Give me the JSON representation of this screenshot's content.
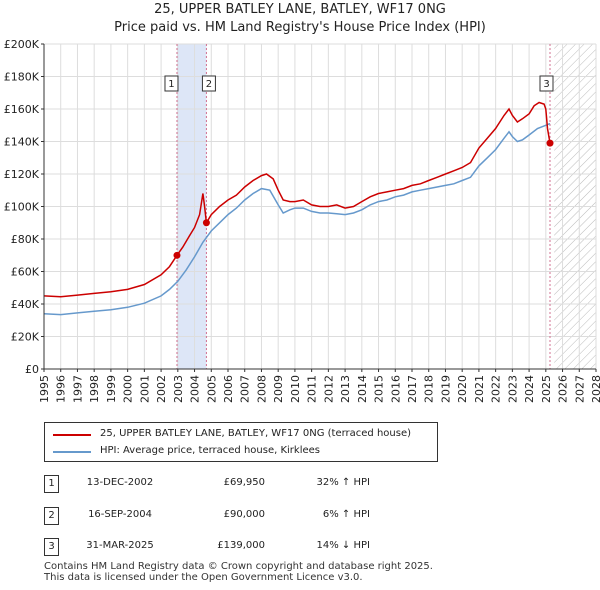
{
  "header": {
    "line1": "25, UPPER BATLEY LANE, BATLEY, WF17 0NG",
    "line2": "Price paid vs. HM Land Registry's House Price Index (HPI)"
  },
  "colors": {
    "price_line": "#cc0000",
    "hpi_line": "#6699cc",
    "shade": "#dde6f7",
    "grid": "#dddddd",
    "future_hatch": "#bbbbbb"
  },
  "chart_data": {
    "type": "line",
    "title": "25, UPPER BATLEY LANE, BATLEY, WF17 0NG — Price paid vs. HM Land Registry's House Price Index (HPI)",
    "xlim": [
      1995,
      2028
    ],
    "ylim": [
      0,
      200000
    ],
    "x_ticks": [
      "1995",
      "1996",
      "1997",
      "1998",
      "1999",
      "2000",
      "2001",
      "2002",
      "2003",
      "2004",
      "2005",
      "2006",
      "2007",
      "2008",
      "2009",
      "2010",
      "2011",
      "2012",
      "2013",
      "2014",
      "2015",
      "2016",
      "2017",
      "2018",
      "2019",
      "2020",
      "2021",
      "2022",
      "2023",
      "2024",
      "2025",
      "2026",
      "2027",
      "2028"
    ],
    "y_ticks": [
      {
        "value": 0,
        "label": "£0"
      },
      {
        "value": 20000,
        "label": "£20K"
      },
      {
        "value": 40000,
        "label": "£40K"
      },
      {
        "value": 60000,
        "label": "£60K"
      },
      {
        "value": 80000,
        "label": "£80K"
      },
      {
        "value": 100000,
        "label": "£100K"
      },
      {
        "value": 120000,
        "label": "£120K"
      },
      {
        "value": 140000,
        "label": "£140K"
      },
      {
        "value": 160000,
        "label": "£160K"
      },
      {
        "value": 180000,
        "label": "£180K"
      },
      {
        "value": 200000,
        "label": "£200K"
      }
    ],
    "shaded_span": [
      2002.95,
      2004.71
    ],
    "future_start": 2025.5,
    "series": [
      {
        "name": "25, UPPER BATLEY LANE, BATLEY, WF17 0NG (terraced house)",
        "color": "#cc0000",
        "points": [
          [
            1995.0,
            45000
          ],
          [
            1996.0,
            44500
          ],
          [
            1997.0,
            45500
          ],
          [
            1998.0,
            46500
          ],
          [
            1999.0,
            47500
          ],
          [
            2000.0,
            49000
          ],
          [
            2001.0,
            52000
          ],
          [
            2002.0,
            58000
          ],
          [
            2002.5,
            63000
          ],
          [
            2002.95,
            69950
          ],
          [
            2003.3,
            75000
          ],
          [
            2003.7,
            82000
          ],
          [
            2004.0,
            87000
          ],
          [
            2004.3,
            95000
          ],
          [
            2004.5,
            108000
          ],
          [
            2004.6,
            100000
          ],
          [
            2004.71,
            90000
          ],
          [
            2005.0,
            95000
          ],
          [
            2005.5,
            100000
          ],
          [
            2006.0,
            104000
          ],
          [
            2006.5,
            107000
          ],
          [
            2007.0,
            112000
          ],
          [
            2007.5,
            116000
          ],
          [
            2008.0,
            119000
          ],
          [
            2008.3,
            120000
          ],
          [
            2008.7,
            117000
          ],
          [
            2009.0,
            110000
          ],
          [
            2009.3,
            104000
          ],
          [
            2009.7,
            103000
          ],
          [
            2010.0,
            103000
          ],
          [
            2010.5,
            104000
          ],
          [
            2011.0,
            101000
          ],
          [
            2011.5,
            100000
          ],
          [
            2012.0,
            100000
          ],
          [
            2012.5,
            101000
          ],
          [
            2013.0,
            99000
          ],
          [
            2013.5,
            100000
          ],
          [
            2014.0,
            103000
          ],
          [
            2014.5,
            106000
          ],
          [
            2015.0,
            108000
          ],
          [
            2015.5,
            109000
          ],
          [
            2016.0,
            110000
          ],
          [
            2016.5,
            111000
          ],
          [
            2017.0,
            113000
          ],
          [
            2017.5,
            114000
          ],
          [
            2018.0,
            116000
          ],
          [
            2018.5,
            118000
          ],
          [
            2019.0,
            120000
          ],
          [
            2019.5,
            122000
          ],
          [
            2020.0,
            124000
          ],
          [
            2020.5,
            127000
          ],
          [
            2021.0,
            136000
          ],
          [
            2021.5,
            142000
          ],
          [
            2022.0,
            148000
          ],
          [
            2022.5,
            156000
          ],
          [
            2022.8,
            160000
          ],
          [
            2023.0,
            156000
          ],
          [
            2023.3,
            152000
          ],
          [
            2023.6,
            154000
          ],
          [
            2024.0,
            157000
          ],
          [
            2024.3,
            162000
          ],
          [
            2024.6,
            164000
          ],
          [
            2024.9,
            163000
          ],
          [
            2025.0,
            160000
          ],
          [
            2025.1,
            148000
          ],
          [
            2025.25,
            139000
          ]
        ]
      },
      {
        "name": "HPI: Average price, terraced house, Kirklees",
        "color": "#6699cc",
        "points": [
          [
            1995.0,
            34000
          ],
          [
            1996.0,
            33500
          ],
          [
            1997.0,
            34500
          ],
          [
            1998.0,
            35500
          ],
          [
            1999.0,
            36500
          ],
          [
            2000.0,
            38000
          ],
          [
            2001.0,
            40500
          ],
          [
            2002.0,
            45000
          ],
          [
            2002.5,
            49000
          ],
          [
            2003.0,
            54000
          ],
          [
            2003.5,
            61000
          ],
          [
            2004.0,
            69000
          ],
          [
            2004.5,
            78000
          ],
          [
            2005.0,
            85000
          ],
          [
            2005.5,
            90000
          ],
          [
            2006.0,
            95000
          ],
          [
            2006.5,
            99000
          ],
          [
            2007.0,
            104000
          ],
          [
            2007.5,
            108000
          ],
          [
            2008.0,
            111000
          ],
          [
            2008.5,
            110000
          ],
          [
            2009.0,
            101000
          ],
          [
            2009.3,
            96000
          ],
          [
            2009.7,
            98000
          ],
          [
            2010.0,
            99000
          ],
          [
            2010.5,
            99000
          ],
          [
            2011.0,
            97000
          ],
          [
            2011.5,
            96000
          ],
          [
            2012.0,
            96000
          ],
          [
            2012.5,
            95500
          ],
          [
            2013.0,
            95000
          ],
          [
            2013.5,
            96000
          ],
          [
            2014.0,
            98000
          ],
          [
            2014.5,
            101000
          ],
          [
            2015.0,
            103000
          ],
          [
            2015.5,
            104000
          ],
          [
            2016.0,
            106000
          ],
          [
            2016.5,
            107000
          ],
          [
            2017.0,
            109000
          ],
          [
            2017.5,
            110000
          ],
          [
            2018.0,
            111000
          ],
          [
            2018.5,
            112000
          ],
          [
            2019.0,
            113000
          ],
          [
            2019.5,
            114000
          ],
          [
            2020.0,
            116000
          ],
          [
            2020.5,
            118000
          ],
          [
            2021.0,
            125000
          ],
          [
            2021.5,
            130000
          ],
          [
            2022.0,
            135000
          ],
          [
            2022.5,
            142000
          ],
          [
            2022.8,
            146000
          ],
          [
            2023.0,
            143000
          ],
          [
            2023.3,
            140000
          ],
          [
            2023.6,
            141000
          ],
          [
            2024.0,
            144000
          ],
          [
            2024.5,
            148000
          ],
          [
            2025.0,
            150000
          ],
          [
            2025.25,
            151000
          ]
        ]
      }
    ],
    "sales": [
      {
        "id": "1",
        "x": 2002.95,
        "price": 69950
      },
      {
        "id": "2",
        "x": 2004.71,
        "price": 90000
      },
      {
        "id": "3",
        "x": 2025.25,
        "price": 139000
      }
    ]
  },
  "legend": {
    "price_label": "25, UPPER BATLEY LANE, BATLEY, WF17 0NG (terraced house)",
    "hpi_label": "HPI: Average price, terraced house, Kirklees"
  },
  "sales_table": [
    {
      "id": "1",
      "date": "13-DEC-2002",
      "price": "£69,950",
      "hpi": "32% ↑ HPI"
    },
    {
      "id": "2",
      "date": "16-SEP-2004",
      "price": "£90,000",
      "hpi": "6% ↑ HPI"
    },
    {
      "id": "3",
      "date": "31-MAR-2025",
      "price": "£139,000",
      "hpi": "14% ↓ HPI"
    }
  ],
  "footer": {
    "line1": "Contains HM Land Registry data © Crown copyright and database right 2025.",
    "line2": "This data is licensed under the Open Government Licence v3.0."
  }
}
